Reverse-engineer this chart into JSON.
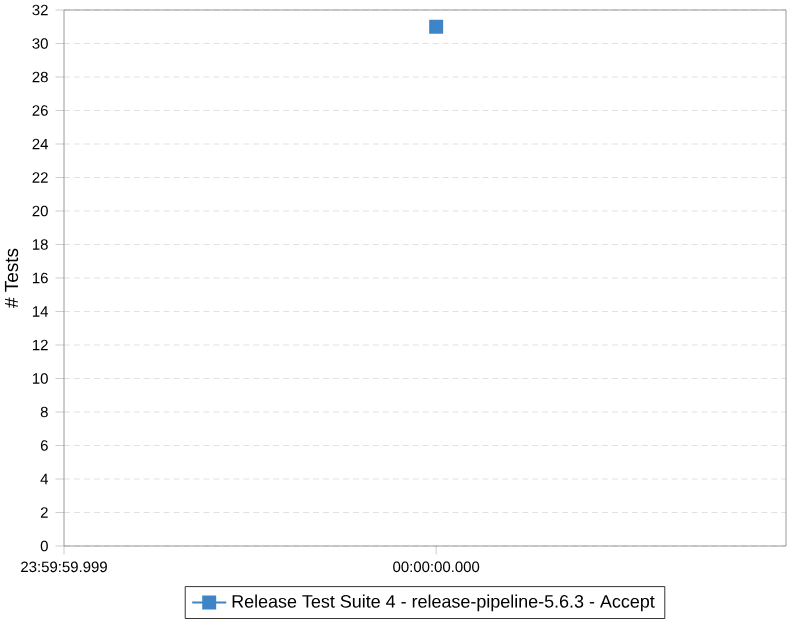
{
  "chart_data": {
    "type": "line",
    "ylabel": "# Tests",
    "categories": [
      "23:59:59.999",
      "00:00:00.000"
    ],
    "series": [
      {
        "name": "Release Test Suite 4 - release-pipeline-5.6.3 - Accept",
        "color": "#3d85c6",
        "values": [
          null,
          31
        ]
      }
    ],
    "ylim": [
      0,
      32
    ],
    "yticks": [
      0,
      2,
      4,
      6,
      8,
      10,
      12,
      14,
      16,
      18,
      20,
      22,
      24,
      26,
      28,
      30,
      32
    ],
    "grid": "y",
    "legend": "bottom",
    "marker": "square"
  }
}
